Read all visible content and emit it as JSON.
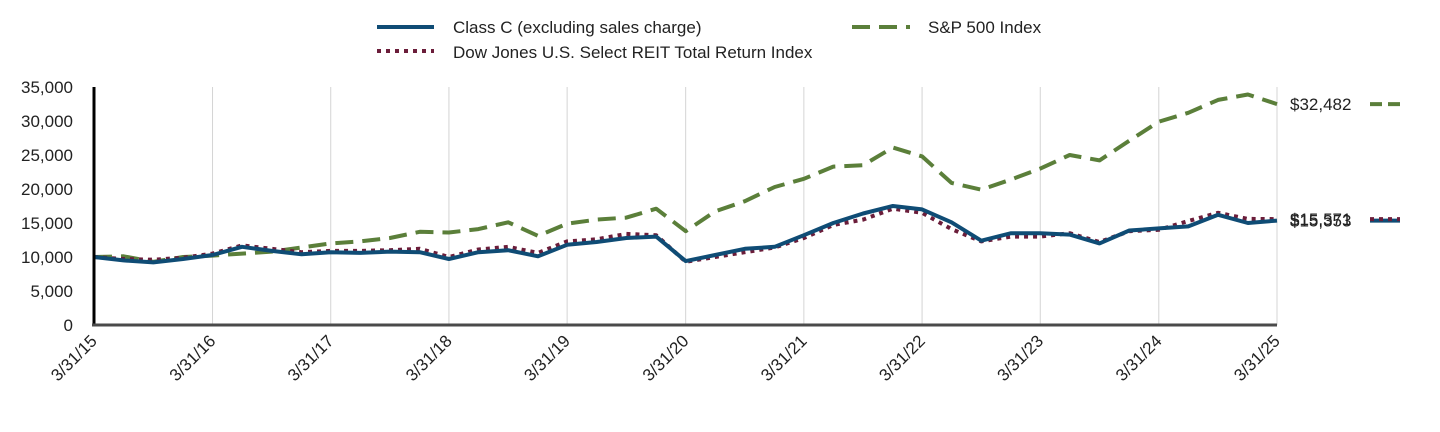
{
  "chart_data": {
    "type": "line",
    "title": "",
    "xlabel": "",
    "ylabel": "",
    "ylim": [
      0,
      35000
    ],
    "x_start": "3/31/15",
    "x_end": "3/31/25",
    "x_ticks": [
      "3/31/15",
      "3/31/16",
      "3/31/17",
      "3/31/18",
      "3/31/19",
      "3/31/20",
      "3/31/21",
      "3/31/22",
      "3/31/23",
      "3/31/24",
      "3/31/25"
    ],
    "y_ticks": [
      "0",
      "5,000",
      "10,000",
      "15,000",
      "20,000",
      "25,000",
      "30,000",
      "35,000"
    ],
    "y_tick_values": [
      0,
      5000,
      10000,
      15000,
      20000,
      25000,
      30000,
      35000
    ],
    "grid": "vertical",
    "legend_position": "top",
    "series": [
      {
        "name": "Class C (excluding sales charge)",
        "color": "#0f4c75",
        "dash": "solid",
        "end_label": "$15,353",
        "points": [
          [
            "3/31/15",
            10000
          ],
          [
            "6/30/15",
            9500
          ],
          [
            "9/30/15",
            9200
          ],
          [
            "12/31/15",
            9700
          ],
          [
            "3/31/16",
            10300
          ],
          [
            "6/30/16",
            11500
          ],
          [
            "9/30/16",
            10900
          ],
          [
            "12/31/16",
            10400
          ],
          [
            "3/31/17",
            10700
          ],
          [
            "6/30/17",
            10600
          ],
          [
            "9/30/17",
            10800
          ],
          [
            "12/31/17",
            10700
          ],
          [
            "3/31/18",
            9700
          ],
          [
            "6/30/18",
            10700
          ],
          [
            "9/30/18",
            11000
          ],
          [
            "12/31/18",
            10100
          ],
          [
            "3/31/19",
            11800
          ],
          [
            "6/30/19",
            12200
          ],
          [
            "9/30/19",
            12800
          ],
          [
            "12/31/19",
            13000
          ],
          [
            "3/31/20",
            9400
          ],
          [
            "6/30/20",
            10300
          ],
          [
            "9/30/20",
            11200
          ],
          [
            "12/31/20",
            11500
          ],
          [
            "3/31/21",
            13200
          ],
          [
            "6/30/21",
            15000
          ],
          [
            "9/30/21",
            16400
          ],
          [
            "12/31/21",
            17500
          ],
          [
            "3/31/22",
            17000
          ],
          [
            "6/30/22",
            15100
          ],
          [
            "9/30/22",
            12400
          ],
          [
            "12/31/22",
            13500
          ],
          [
            "3/31/23",
            13500
          ],
          [
            "6/30/23",
            13300
          ],
          [
            "9/30/23",
            12000
          ],
          [
            "12/31/23",
            13900
          ],
          [
            "3/31/24",
            14200
          ],
          [
            "6/30/24",
            14500
          ],
          [
            "9/30/24",
            16200
          ],
          [
            "12/31/24",
            15000
          ],
          [
            "3/31/25",
            15353
          ]
        ]
      },
      {
        "name": "S&P 500 Index",
        "color": "#5b7f3a",
        "dash": "long-dash",
        "end_label": "$32,482",
        "points": [
          [
            "3/31/15",
            10000
          ],
          [
            "6/30/15",
            10100
          ],
          [
            "9/30/15",
            9300
          ],
          [
            "12/31/15",
            10000
          ],
          [
            "3/31/16",
            10200
          ],
          [
            "6/30/16",
            10500
          ],
          [
            "9/30/16",
            10800
          ],
          [
            "12/31/16",
            11400
          ],
          [
            "3/31/17",
            12000
          ],
          [
            "6/30/17",
            12300
          ],
          [
            "9/30/17",
            12800
          ],
          [
            "12/31/17",
            13700
          ],
          [
            "3/31/18",
            13600
          ],
          [
            "6/30/18",
            14100
          ],
          [
            "9/30/18",
            15100
          ],
          [
            "12/31/18",
            13100
          ],
          [
            "3/31/19",
            14900
          ],
          [
            "6/30/19",
            15500
          ],
          [
            "9/30/19",
            15800
          ],
          [
            "12/31/19",
            17100
          ],
          [
            "3/31/20",
            13800
          ],
          [
            "6/30/20",
            16700
          ],
          [
            "9/30/20",
            18200
          ],
          [
            "12/31/20",
            20300
          ],
          [
            "3/31/21",
            21500
          ],
          [
            "6/30/21",
            23300
          ],
          [
            "9/30/21",
            23500
          ],
          [
            "12/31/21",
            26100
          ],
          [
            "3/31/22",
            24800
          ],
          [
            "6/30/22",
            20900
          ],
          [
            "9/30/22",
            19900
          ],
          [
            "12/31/22",
            21400
          ],
          [
            "3/31/23",
            23000
          ],
          [
            "6/30/23",
            25000
          ],
          [
            "9/30/23",
            24200
          ],
          [
            "12/31/23",
            27100
          ],
          [
            "3/31/24",
            29900
          ],
          [
            "6/30/24",
            31200
          ],
          [
            "9/30/24",
            33100
          ],
          [
            "12/31/24",
            33900
          ],
          [
            "3/31/25",
            32482
          ]
        ]
      },
      {
        "name": "Dow Jones U.S. Select REIT Total Return Index",
        "color": "#6b1d3a",
        "dash": "dotted",
        "end_label": "$15,571",
        "points": [
          [
            "3/31/15",
            10000
          ],
          [
            "6/30/15",
            9700
          ],
          [
            "9/30/15",
            9600
          ],
          [
            "12/31/15",
            9900
          ],
          [
            "3/31/16",
            10500
          ],
          [
            "6/30/16",
            11700
          ],
          [
            "9/30/16",
            11200
          ],
          [
            "12/31/16",
            10700
          ],
          [
            "3/31/17",
            10900
          ],
          [
            "6/30/17",
            10900
          ],
          [
            "9/30/17",
            11000
          ],
          [
            "12/31/17",
            11200
          ],
          [
            "3/31/18",
            10000
          ],
          [
            "6/30/18",
            11100
          ],
          [
            "9/30/18",
            11500
          ],
          [
            "12/31/18",
            10600
          ],
          [
            "3/31/19",
            12300
          ],
          [
            "6/30/19",
            12600
          ],
          [
            "9/30/19",
            13400
          ],
          [
            "12/31/19",
            13200
          ],
          [
            "3/31/20",
            9300
          ],
          [
            "6/30/20",
            10000
          ],
          [
            "9/30/20",
            10700
          ],
          [
            "12/31/20",
            11400
          ],
          [
            "3/31/21",
            12800
          ],
          [
            "6/30/21",
            14700
          ],
          [
            "9/30/21",
            15500
          ],
          [
            "12/31/21",
            17100
          ],
          [
            "3/31/22",
            16500
          ],
          [
            "6/30/22",
            14100
          ],
          [
            "9/30/22",
            12300
          ],
          [
            "12/31/22",
            13000
          ],
          [
            "3/31/23",
            13000
          ],
          [
            "6/30/23",
            13500
          ],
          [
            "9/30/23",
            12200
          ],
          [
            "12/31/23",
            13800
          ],
          [
            "3/31/24",
            14000
          ],
          [
            "6/30/24",
            15300
          ],
          [
            "9/30/24",
            16500
          ],
          [
            "12/31/24",
            15600
          ],
          [
            "3/31/25",
            15571
          ]
        ]
      }
    ]
  }
}
